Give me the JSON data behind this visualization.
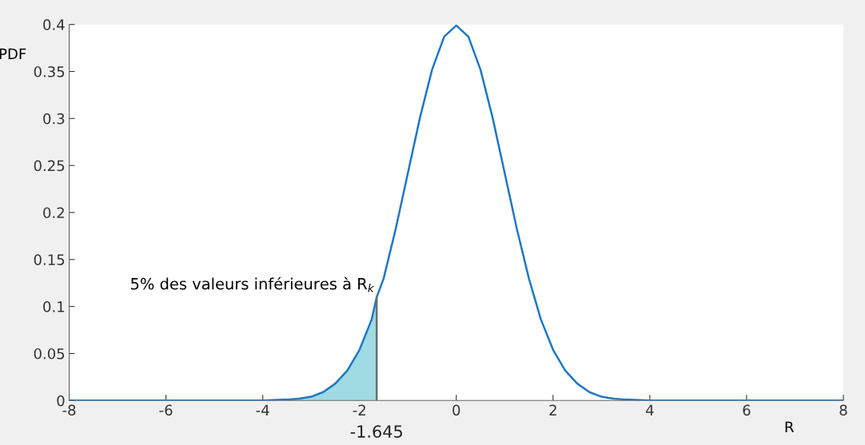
{
  "chart_data": {
    "type": "line",
    "xlabel": "R",
    "ylabel": "PDF",
    "xlim": [
      -8,
      8
    ],
    "ylim": [
      0,
      0.4
    ],
    "xticks": [
      -8,
      -6,
      -4,
      -2,
      0,
      2,
      4,
      6,
      8
    ],
    "yticks": [
      0,
      0.05,
      0.1,
      0.15,
      0.2,
      0.25,
      0.3,
      0.35,
      0.4
    ],
    "grid": false,
    "legend": false,
    "marker": "none",
    "line_style": "solid",
    "series": [
      {
        "type": "area",
        "color": "#a0dbe3",
        "x": [
          -8,
          -4,
          -3.5,
          -3.25,
          -3,
          -2.75,
          -2.5,
          -2.25,
          -2,
          -1.75,
          -1.645
        ],
        "values": [
          0,
          0,
          0.001,
          0.002,
          0.004,
          0.009,
          0.018,
          0.032,
          0.054,
          0.086,
          0.11
        ]
      },
      {
        "color": "#1f77c4",
        "x": [
          -8,
          -5,
          -4,
          -3.5,
          -3.25,
          -3,
          -2.75,
          -2.5,
          -2.25,
          -2,
          -1.75,
          -1.645,
          -1.5,
          -1.25,
          -1,
          -0.75,
          -0.5,
          -0.25,
          0,
          0.25,
          0.5,
          0.75,
          1,
          1.25,
          1.5,
          1.75,
          2,
          2.25,
          2.5,
          2.75,
          3,
          3.25,
          3.5,
          4,
          5,
          8
        ],
        "values": [
          0,
          0,
          0,
          0.001,
          0.002,
          0.004,
          0.009,
          0.018,
          0.032,
          0.054,
          0.086,
          0.11,
          0.13,
          0.183,
          0.242,
          0.301,
          0.352,
          0.387,
          0.399,
          0.387,
          0.352,
          0.301,
          0.242,
          0.183,
          0.13,
          0.086,
          0.054,
          0.032,
          0.018,
          0.009,
          0.004,
          0.002,
          0.001,
          0,
          0,
          0
        ]
      },
      {
        "color": "#6e6e6e",
        "x": [
          -1.645,
          -1.645
        ],
        "values": [
          0,
          0.11
        ]
      }
    ],
    "annotations": [
      {
        "text": "5% des valeurs inférieures à R$_{k}$",
        "x": -1.645,
        "y": 0.11
      },
      {
        "text": "-1.645",
        "x": -1.645,
        "y": 0
      }
    ]
  }
}
